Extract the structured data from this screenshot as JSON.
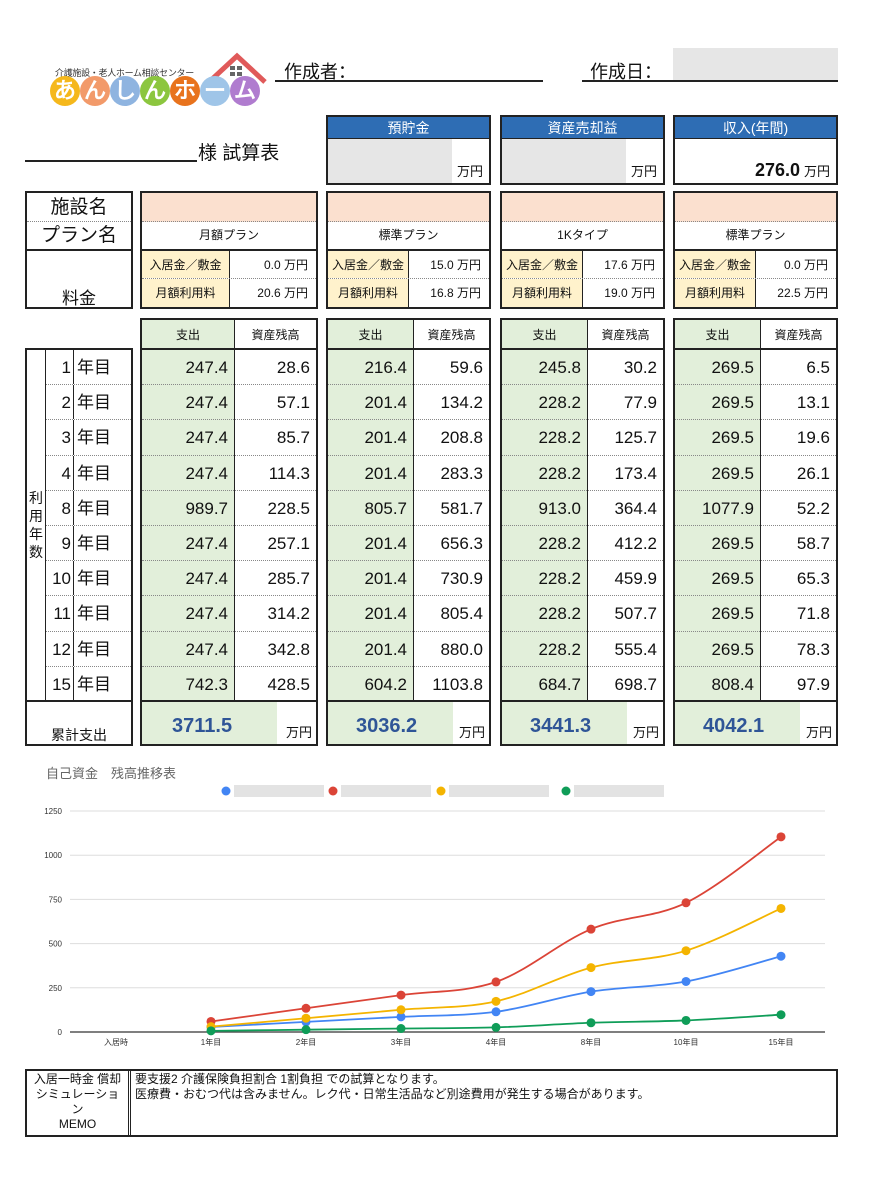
{
  "logo": {
    "subtitle": "介護施設・老人ホーム相談センター",
    "letters": [
      "あ",
      "ん",
      "し",
      "ん",
      "ホ",
      "ー",
      "ム"
    ],
    "colors": [
      "#f5b81c",
      "#f29a6a",
      "#8fb4e0",
      "#8cc63f",
      "#e8731d",
      "#9fc5e8",
      "#b07ccf"
    ],
    "roof_color": "#e05a5a"
  },
  "header": {
    "author_label": "作成者：",
    "date_label": "作成日：",
    "title_suffix": "様 試算表"
  },
  "summary": [
    {
      "label": "預貯金",
      "value": "",
      "unit": "万円"
    },
    {
      "label": "資産売却益",
      "value": "",
      "unit": "万円"
    },
    {
      "label": "収入(年間)",
      "value": "276.0",
      "unit": "万円"
    }
  ],
  "labels": {
    "facility": "施設名",
    "plan": "プラン名",
    "fee": "料金",
    "usage_years": [
      "利",
      "用",
      "年",
      "数"
    ],
    "year_suffix": "年目",
    "total": "累計支出",
    "expense": "支出",
    "balance": "資産残高"
  },
  "years": [
    "1",
    "2",
    "3",
    "4",
    "8",
    "9",
    "10",
    "11",
    "12",
    "15"
  ],
  "colors": {
    "header_blue": "#2e6db4",
    "facility_fill": "#fbe0cf",
    "fee_label_fill": "#fff2cc",
    "expense_fill": "#e2efda",
    "total_text": "#2f5597"
  },
  "plans": [
    {
      "facility": "",
      "plan": "月額プラン",
      "fees": [
        {
          "label": "入居金／敷金",
          "value": "0.0",
          "unit": "万円"
        },
        {
          "label": "月額利用料",
          "value": "20.6",
          "unit": "万円"
        }
      ],
      "rows": [
        [
          "247.4",
          "28.6"
        ],
        [
          "247.4",
          "57.1"
        ],
        [
          "247.4",
          "85.7"
        ],
        [
          "247.4",
          "114.3"
        ],
        [
          "989.7",
          "228.5"
        ],
        [
          "247.4",
          "257.1"
        ],
        [
          "247.4",
          "285.7"
        ],
        [
          "247.4",
          "314.2"
        ],
        [
          "247.4",
          "342.8"
        ],
        [
          "742.3",
          "428.5"
        ]
      ],
      "total": "3711.5",
      "total_unit": "万円"
    },
    {
      "facility": "",
      "plan": "標準プラン",
      "fees": [
        {
          "label": "入居金／敷金",
          "value": "15.0",
          "unit": "万円"
        },
        {
          "label": "月額利用料",
          "value": "16.8",
          "unit": "万円"
        }
      ],
      "rows": [
        [
          "216.4",
          "59.6"
        ],
        [
          "201.4",
          "134.2"
        ],
        [
          "201.4",
          "208.8"
        ],
        [
          "201.4",
          "283.3"
        ],
        [
          "805.7",
          "581.7"
        ],
        [
          "201.4",
          "656.3"
        ],
        [
          "201.4",
          "730.9"
        ],
        [
          "201.4",
          "805.4"
        ],
        [
          "201.4",
          "880.0"
        ],
        [
          "604.2",
          "1103.8"
        ]
      ],
      "total": "3036.2",
      "total_unit": "万円"
    },
    {
      "facility": "",
      "plan": "1Kタイプ",
      "fees": [
        {
          "label": "入居金／敷金",
          "value": "17.6",
          "unit": "万円"
        },
        {
          "label": "月額利用料",
          "value": "19.0",
          "unit": "万円"
        }
      ],
      "rows": [
        [
          "245.8",
          "30.2"
        ],
        [
          "228.2",
          "77.9"
        ],
        [
          "228.2",
          "125.7"
        ],
        [
          "228.2",
          "173.4"
        ],
        [
          "913.0",
          "364.4"
        ],
        [
          "228.2",
          "412.2"
        ],
        [
          "228.2",
          "459.9"
        ],
        [
          "228.2",
          "507.7"
        ],
        [
          "228.2",
          "555.4"
        ],
        [
          "684.7",
          "698.7"
        ]
      ],
      "total": "3441.3",
      "total_unit": "万円"
    },
    {
      "facility": "",
      "plan": "標準プラン",
      "fees": [
        {
          "label": "入居金／敷金",
          "value": "0.0",
          "unit": "万円"
        },
        {
          "label": "月額利用料",
          "value": "22.5",
          "unit": "万円"
        }
      ],
      "rows": [
        [
          "269.5",
          "6.5"
        ],
        [
          "269.5",
          "13.1"
        ],
        [
          "269.5",
          "19.6"
        ],
        [
          "269.5",
          "26.1"
        ],
        [
          "1077.9",
          "52.2"
        ],
        [
          "269.5",
          "58.7"
        ],
        [
          "269.5",
          "65.3"
        ],
        [
          "269.5",
          "71.8"
        ],
        [
          "269.5",
          "78.3"
        ],
        [
          "808.4",
          "97.9"
        ]
      ],
      "total": "4042.1",
      "total_unit": "万円"
    }
  ],
  "chart_data": {
    "type": "line",
    "title": "自己資金　残高推移表",
    "categories": [
      "入居時",
      "1年目",
      "2年目",
      "3年目",
      "4年目",
      "8年目",
      "10年目",
      "15年目"
    ],
    "ylim": [
      0,
      1250
    ],
    "yticks": [
      0,
      250,
      500,
      750,
      1000,
      1250
    ],
    "grid": true,
    "legend": "top",
    "smooth": true,
    "series": [
      {
        "color": "#4285f4",
        "values": [
          null,
          28.6,
          57.1,
          85.7,
          114.3,
          228.5,
          285.7,
          428.5
        ]
      },
      {
        "color": "#db4437",
        "values": [
          null,
          59.6,
          134.2,
          208.8,
          283.3,
          581.7,
          730.9,
          1103.8
        ]
      },
      {
        "color": "#f4b400",
        "values": [
          null,
          30.2,
          77.9,
          125.7,
          173.4,
          364.4,
          459.9,
          698.7
        ]
      },
      {
        "color": "#0f9d58",
        "values": [
          null,
          6.5,
          13.1,
          19.6,
          26.1,
          52.2,
          65.3,
          97.9
        ]
      }
    ]
  },
  "memo": {
    "label_lines": [
      "入居一時金 償却",
      "シミュレーショ",
      "ン",
      "MEMO"
    ],
    "lines": [
      "要支援2 介護保険負担割合 1割負担 での試算となります。",
      "医療費・おむつ代は含みません。レク代・日常生活品など別途費用が発生する場合があります。"
    ]
  }
}
